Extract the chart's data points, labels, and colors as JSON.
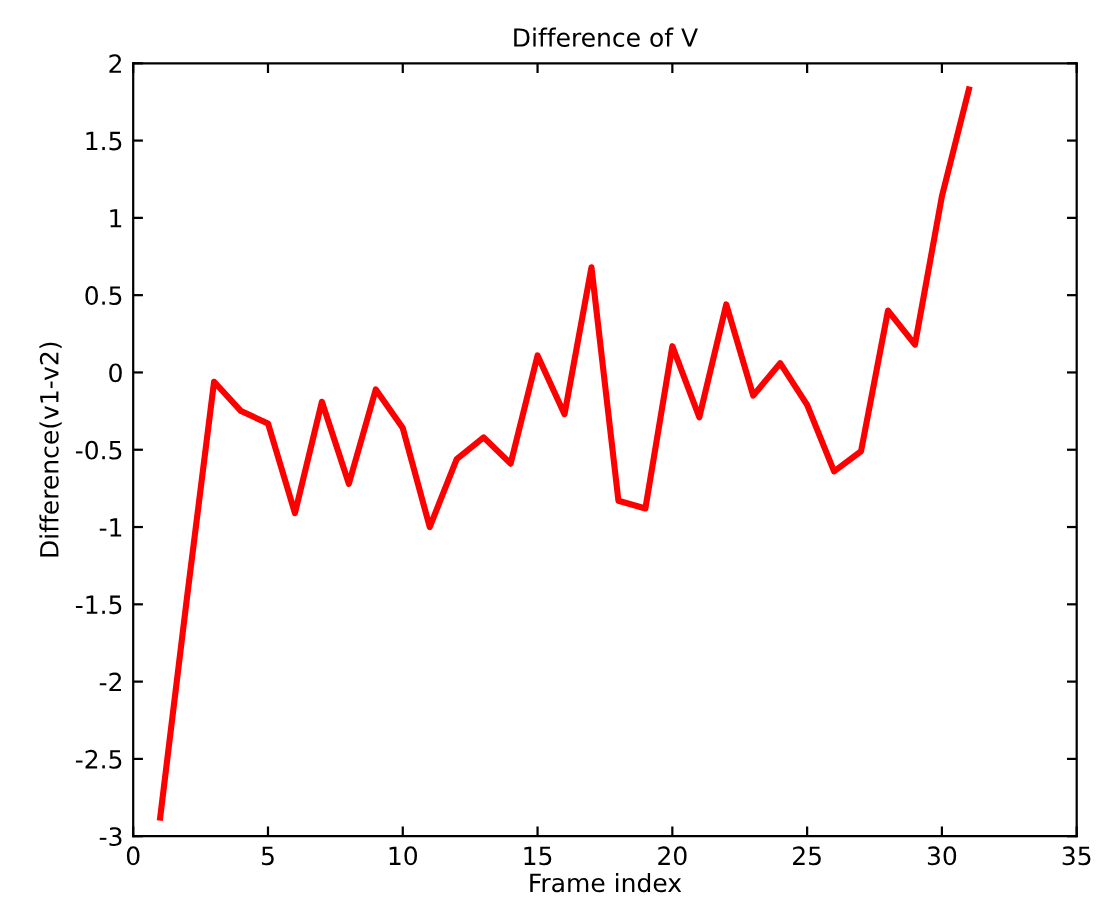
{
  "chart_data": {
    "type": "line",
    "title": "Difference of V",
    "xlabel": "Frame index",
    "ylabel": "Difference(v1-v2)",
    "x": [
      1,
      2,
      3,
      4,
      5,
      6,
      7,
      8,
      9,
      10,
      11,
      12,
      13,
      14,
      15,
      16,
      17,
      18,
      19,
      20,
      21,
      22,
      23,
      24,
      25,
      26,
      27,
      28,
      29,
      30,
      31
    ],
    "series": [
      {
        "color": "#ff0000",
        "values": [
          -2.88,
          -1.45,
          -0.06,
          -0.25,
          -0.33,
          -0.91,
          -0.19,
          -0.72,
          -0.11,
          -0.36,
          -1.0,
          -0.56,
          -0.42,
          -0.59,
          0.11,
          -0.27,
          0.68,
          -0.83,
          -0.88,
          0.17,
          -0.29,
          0.44,
          -0.15,
          0.06,
          -0.21,
          -0.64,
          -0.51,
          0.4,
          0.18,
          1.14,
          1.83
        ]
      }
    ],
    "xlim": [
      0,
      35
    ],
    "xticks": [
      0,
      5,
      10,
      15,
      20,
      25,
      30,
      35
    ],
    "ylim": [
      -3,
      2
    ],
    "yticks": [
      -3,
      -2.5,
      -2,
      -1.5,
      -1,
      -0.5,
      0,
      0.5,
      1,
      1.5,
      2
    ],
    "grid": false,
    "legend": false,
    "marker": "none",
    "line_style": "solid"
  }
}
